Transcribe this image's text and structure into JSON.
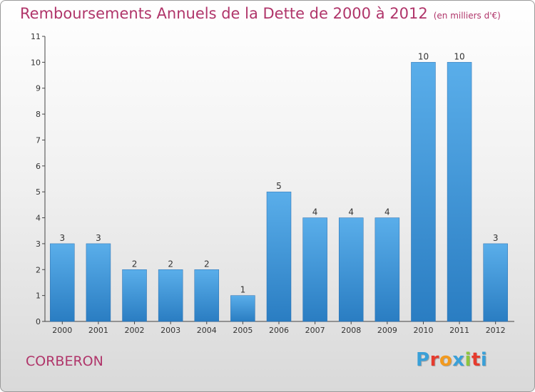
{
  "title": "Remboursements Annuels de la Dette de 2000 à 2012",
  "unit": "(en milliers d'€)",
  "commune": "CORBERON",
  "logo_text": "Proxiti",
  "colors": {
    "title": "#b0356a",
    "bar_top": "#5aaeea",
    "bar_bottom": "#2a7dc2",
    "logo_letters": [
      "#3aa0d8",
      "#e63b2e",
      "#f29a1f",
      "#3aa0d8",
      "#8dc63f",
      "#e63b2e",
      "#3aa0d8"
    ]
  },
  "chart_data": {
    "type": "bar",
    "categories": [
      "2000",
      "2001",
      "2002",
      "2003",
      "2004",
      "2005",
      "2006",
      "2007",
      "2008",
      "2009",
      "2010",
      "2011",
      "2012"
    ],
    "values": [
      3,
      3,
      2,
      2,
      2,
      1,
      5,
      4,
      4,
      4,
      10,
      10,
      3
    ],
    "data_labels": [
      "3",
      "3",
      "2",
      "2",
      "2",
      "1",
      "5",
      "4",
      "4",
      "4",
      "10",
      "10",
      "3"
    ],
    "yticks": [
      "0",
      "1",
      "2",
      "3",
      "4",
      "5",
      "6",
      "7",
      "8",
      "9",
      "10",
      "11"
    ],
    "ylim": [
      0,
      11
    ],
    "grid": false,
    "xlabel": "",
    "ylabel": ""
  }
}
